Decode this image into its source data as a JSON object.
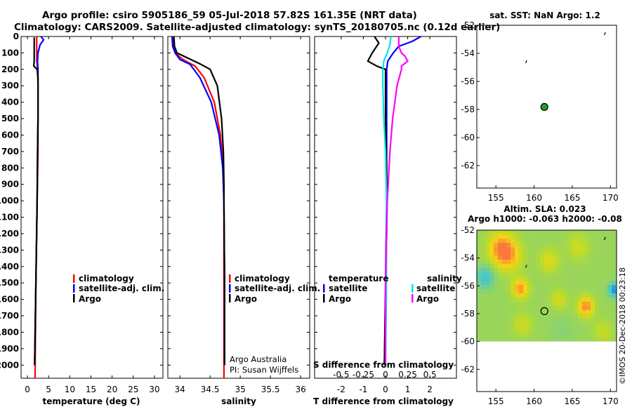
{
  "title_line1": "Argo profile: csiro 5905186_59 05-Jul-2018 57.82S 161.35E (NRT data)",
  "title_line2": "Climatology: CARS2009. Satellite-adjusted climatology: synTS_20180705.nc (0.12d earlier)",
  "credit": "Argo Australia",
  "pi": "PI: Susan Wijffels",
  "stamp": "©IMOS 20-Dec-2018 00:23:18",
  "colors": {
    "climatology": "#ff0000",
    "satellite": "#0000ff",
    "argo": "#000000",
    "sat_sal": "#00e5e5",
    "argo_sal": "#ff00ff"
  },
  "chart_data": [
    {
      "type": "line",
      "title": "",
      "xlabel": "temperature (deg C)",
      "ylabel": "",
      "xlim": [
        -1.5,
        32
      ],
      "ylim": [
        2080,
        0
      ],
      "xticks": [
        0,
        5,
        10,
        15,
        20,
        25,
        30
      ],
      "xtick_labels": [
        "0",
        "5",
        "10",
        "15",
        "20",
        "25",
        "30"
      ],
      "yticks": [
        0,
        100,
        200,
        300,
        400,
        500,
        600,
        700,
        800,
        900,
        1000,
        1100,
        1200,
        1300,
        1400,
        1500,
        1600,
        1700,
        1800,
        1900,
        2000
      ],
      "ytick_labels": [
        "0",
        "100",
        "200",
        "300",
        "400",
        "500",
        "600",
        "700",
        "800",
        "900",
        "1000",
        "1100",
        "1200",
        "1300",
        "1400",
        "1500",
        "1600",
        "1700",
        "1800",
        "1900",
        "2000"
      ],
      "legend": [
        "climatology",
        "satellite-adj. clim.",
        "Argo"
      ],
      "series": [
        {
          "name": "climatology",
          "color": "#ff0000",
          "depth": [
            0,
            50,
            100,
            150,
            200,
            300,
            500,
            700,
            1000,
            1500,
            2080
          ],
          "values": [
            2.2,
            2.2,
            2.2,
            2.2,
            2.4,
            2.5,
            2.5,
            2.5,
            2.3,
            2.0,
            1.8
          ]
        },
        {
          "name": "satellite-adj. clim.",
          "color": "#0000ff",
          "depth": [
            0,
            20,
            50,
            100,
            150,
            200,
            300,
            500,
            700,
            1000,
            1500,
            2000
          ],
          "values": [
            3.2,
            3.8,
            3.0,
            2.5,
            2.4,
            2.5,
            2.5,
            2.5,
            2.4,
            2.3,
            2.0,
            1.7
          ]
        },
        {
          "name": "Argo",
          "color": "#000000",
          "depth": [
            5,
            50,
            100,
            150,
            180,
            200,
            250,
            300,
            500,
            700,
            1000,
            1500,
            2000
          ],
          "values": [
            1.6,
            1.6,
            1.6,
            1.6,
            1.5,
            2.3,
            2.5,
            2.5,
            2.5,
            2.4,
            2.3,
            2.0,
            1.7
          ]
        }
      ]
    },
    {
      "type": "line",
      "title": "",
      "xlabel": "salinity",
      "ylabel": "",
      "xlim": [
        33.8,
        36.15
      ],
      "ylim": [
        2080,
        0
      ],
      "xticks": [
        34,
        34.5,
        35,
        35.5,
        36
      ],
      "xtick_labels": [
        "34",
        "34.5",
        "35",
        "35.5",
        "36"
      ],
      "legend": [
        "climatology",
        "satellite-adj. clim.",
        "Argo"
      ],
      "series": [
        {
          "name": "climatology",
          "color": "#ff0000",
          "depth": [
            0,
            60,
            100,
            140,
            180,
            250,
            400,
            600,
            800,
            1000,
            1500,
            2080
          ],
          "values": [
            33.88,
            33.89,
            33.92,
            34.05,
            34.25,
            34.4,
            34.57,
            34.67,
            34.72,
            34.73,
            34.73,
            34.73
          ]
        },
        {
          "name": "satellite-adj. clim.",
          "color": "#0000ff",
          "depth": [
            0,
            60,
            100,
            140,
            170,
            250,
            400,
            600,
            800,
            1000,
            1500,
            2000
          ],
          "values": [
            33.87,
            33.88,
            33.92,
            34.0,
            34.17,
            34.33,
            34.52,
            34.65,
            34.71,
            34.73,
            34.74,
            34.74
          ]
        },
        {
          "name": "Argo",
          "color": "#000000",
          "depth": [
            0,
            60,
            100,
            140,
            170,
            200,
            300,
            500,
            700,
            900,
            1000,
            1500,
            2000
          ],
          "values": [
            33.9,
            33.91,
            33.95,
            34.18,
            34.35,
            34.5,
            34.62,
            34.69,
            34.72,
            34.73,
            34.73,
            34.74,
            34.74
          ]
        }
      ]
    },
    {
      "type": "line",
      "title": "",
      "xlabel": "T difference from climatology",
      "xlabel2": "S difference from climatology",
      "xlim": [
        -3.2,
        3.2
      ],
      "ylim": [
        2080,
        0
      ],
      "xticks": [
        -2,
        -1,
        0,
        1,
        2
      ],
      "xtick_labels": [
        "-2",
        "-1",
        "0",
        "1",
        "2"
      ],
      "xticks_top": [
        -0.5,
        -0.25,
        0,
        0.25,
        0.5
      ],
      "xtick_labels_top": [
        "-0.5",
        "-0.25",
        "0",
        "0.25",
        "0.5"
      ],
      "legend_temperature_title": "temperature",
      "legend_salinity_title": "salinity",
      "legend": [
        "satellite",
        "Argo",
        "satellite",
        "Argo"
      ],
      "series": [
        {
          "name": "temperature satellite",
          "color": "#0000ff",
          "depth": [
            0,
            30,
            60,
            100,
            150,
            200,
            300,
            500,
            700,
            1000,
            1500,
            2000
          ],
          "values": [
            1.6,
            1.2,
            0.6,
            0.35,
            0.1,
            0.05,
            0.05,
            0.05,
            0.05,
            0.05,
            0.0,
            -0.05
          ]
        },
        {
          "name": "temperature Argo",
          "color": "#000000",
          "depth": [
            0,
            40,
            100,
            150,
            180,
            200,
            300,
            500,
            800,
            1200,
            1600,
            2000
          ],
          "values": [
            -0.5,
            -0.3,
            -0.6,
            -0.8,
            -0.4,
            0.0,
            0.0,
            0.0,
            0.05,
            0.05,
            0.0,
            -0.05
          ]
        },
        {
          "name": "salinity satellite",
          "color": "#00e5e5",
          "depth": [
            0,
            50,
            100,
            150,
            200,
            300,
            500,
            700,
            1000,
            1500,
            2000
          ],
          "values": [
            0.06,
            0.05,
            0.02,
            -0.02,
            -0.03,
            -0.03,
            -0.02,
            0.0,
            0.01,
            0.01,
            0.0
          ]
        },
        {
          "name": "salinity Argo",
          "color": "#ff00ff",
          "depth": [
            0,
            60,
            100,
            120,
            150,
            180,
            200,
            300,
            500,
            700,
            1000,
            1500,
            2000
          ],
          "values": [
            0.15,
            0.15,
            0.18,
            0.22,
            0.25,
            0.18,
            0.18,
            0.13,
            0.08,
            0.05,
            0.02,
            0.0,
            0.0
          ]
        }
      ]
    },
    {
      "type": "scatter",
      "title": "sat. SST: NaN Argo: 1.2",
      "xlim": [
        152.5,
        170.8
      ],
      "ylim": [
        -63.6,
        -52
      ],
      "xticks": [
        155,
        160,
        165,
        170
      ],
      "xtick_labels": [
        "155",
        "160",
        "165",
        "170"
      ],
      "yticks": [
        -52,
        -54,
        -56,
        -58,
        -60,
        -62
      ],
      "ytick_labels": [
        "-52",
        "-54",
        "-56",
        "-58",
        "-60",
        "-62"
      ],
      "points": [
        {
          "lon": 161.35,
          "lat": -57.82,
          "label": "Argo float"
        }
      ],
      "coast_marks": [
        {
          "lon": 158.9,
          "lat": -54.6
        },
        {
          "lon": 169.2,
          "lat": -52.6
        }
      ]
    },
    {
      "type": "heatmap",
      "title": "Altim. SLA: 0.023",
      "subtitle": "Argo h1000: -0.063 h2000: -0.08",
      "xlim": [
        152.5,
        170.8
      ],
      "ylim": [
        -63.6,
        -52
      ],
      "xticks": [
        155,
        160,
        165,
        170
      ],
      "xtick_labels": [
        "155",
        "160",
        "165",
        "170"
      ],
      "yticks": [
        -52,
        -54,
        -56,
        -58,
        -60,
        -62
      ],
      "ytick_labels": [
        "-52",
        "-54",
        "-56",
        "-58",
        "-60",
        "-62"
      ],
      "data_lat_range": [
        -60,
        -52
      ],
      "points": [
        {
          "lon": 161.35,
          "lat": -57.82,
          "label": "Argo float"
        }
      ],
      "blobs": [
        {
          "lon": 155.7,
          "lat": -53.3,
          "v": 0.85,
          "r": 1.6
        },
        {
          "lon": 156.8,
          "lat": -53.9,
          "v": 0.55,
          "r": 1.6
        },
        {
          "lon": 158.2,
          "lat": -56.2,
          "v": 0.85,
          "r": 1.0
        },
        {
          "lon": 166.8,
          "lat": -57.5,
          "v": 0.9,
          "r": 1.0
        },
        {
          "lon": 162.0,
          "lat": -54.2,
          "v": 0.4,
          "r": 1.2
        },
        {
          "lon": 165.8,
          "lat": -53.2,
          "v": 0.3,
          "r": 1.3
        },
        {
          "lon": 153.6,
          "lat": -55.4,
          "v": -0.55,
          "r": 1.1
        },
        {
          "lon": 170.5,
          "lat": -56.3,
          "v": -1.0,
          "r": 0.7
        },
        {
          "lon": 163.3,
          "lat": -57.0,
          "v": 0.35,
          "r": 1.0
        },
        {
          "lon": 158.5,
          "lat": -58.8,
          "v": 0.3,
          "r": 1.2
        },
        {
          "lon": 163.6,
          "lat": -59.2,
          "v": -0.1,
          "r": 1.5
        },
        {
          "lon": 169.0,
          "lat": -59.3,
          "v": 0.25,
          "r": 1.2
        }
      ]
    }
  ]
}
